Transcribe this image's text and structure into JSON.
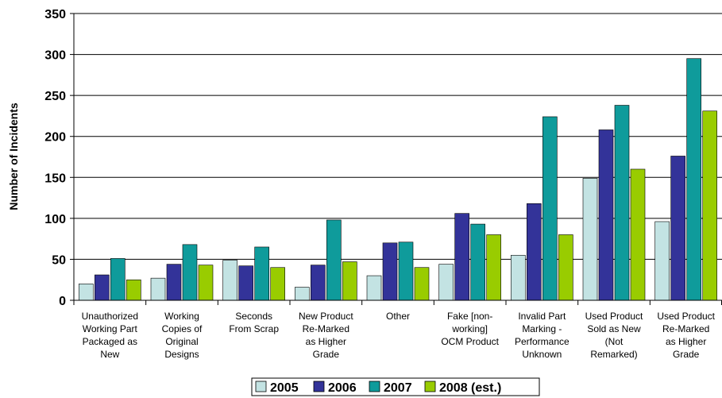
{
  "chart_data": {
    "type": "bar",
    "ylabel": "Number of Incidents",
    "xlabel": "",
    "ylim": [
      0,
      350
    ],
    "yticks": [
      0,
      50,
      100,
      150,
      200,
      250,
      300,
      350
    ],
    "grid": true,
    "legend_position": "bottom",
    "categories": [
      [
        "Unauthorized",
        "Working Part",
        "Packaged as",
        "New"
      ],
      [
        "Working",
        "Copies of",
        "Original",
        "Designs"
      ],
      [
        "Seconds",
        "From Scrap"
      ],
      [
        "New Product",
        "Re-Marked",
        "as Higher",
        "Grade"
      ],
      [
        "Other"
      ],
      [
        "Fake [non-",
        "working]",
        "OCM Product"
      ],
      [
        "Invalid Part",
        "Marking -",
        "Performance",
        "Unknown"
      ],
      [
        "Used Product",
        "Sold as New",
        "(Not",
        "Remarked)"
      ],
      [
        "Used Product",
        "Re-Marked",
        "as Higher",
        "Grade"
      ]
    ],
    "series": [
      {
        "name": "2005",
        "color": "#c3e3e3",
        "values": [
          20,
          27,
          49,
          16,
          30,
          44,
          55,
          149,
          96
        ]
      },
      {
        "name": "2006",
        "color": "#333399",
        "values": [
          31,
          44,
          42,
          43,
          70,
          106,
          118,
          208,
          176
        ]
      },
      {
        "name": "2007",
        "color": "#0f9b9b",
        "values": [
          51,
          68,
          65,
          98,
          71,
          93,
          224,
          238,
          295
        ]
      },
      {
        "name": "2008 (est.)",
        "color": "#99cc00",
        "values": [
          25,
          43,
          40,
          47,
          40,
          80,
          80,
          160,
          231
        ]
      }
    ]
  }
}
